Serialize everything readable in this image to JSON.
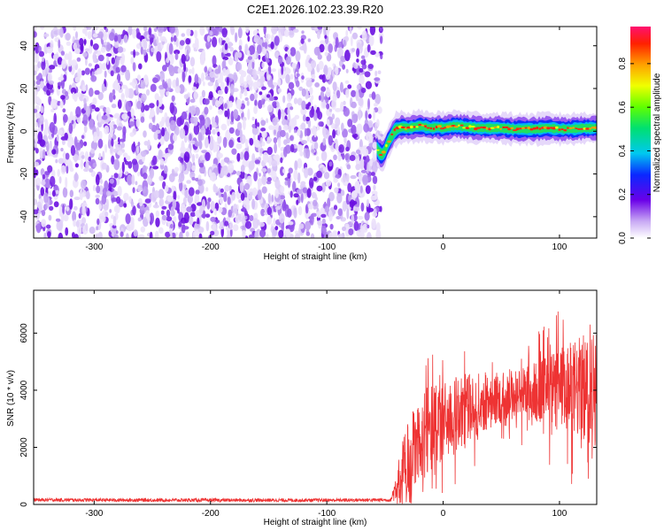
{
  "title": "C2E1.2026.102.23.39.R20",
  "chart_data": [
    {
      "type": "heatmap",
      "name": "spectrogram",
      "xlabel": "Height of straight line (km)",
      "ylabel": "Frequency (Hz)",
      "xlim": [
        -352,
        132
      ],
      "ylim": [
        -50,
        49
      ],
      "x_ticks": [
        -300,
        -200,
        -100,
        0,
        100
      ],
      "y_ticks": [
        -40,
        -20,
        0,
        20,
        40
      ],
      "noise_region_x": [
        -352,
        -57
      ],
      "signal_trace": {
        "x": [
          -57,
          -55,
          -52,
          -50,
          -48,
          -46,
          -44,
          -42,
          -40,
          -35,
          -30,
          -25,
          -20,
          -15,
          -10,
          -5,
          0,
          5,
          10,
          20,
          30,
          40,
          50,
          60,
          70,
          80,
          90,
          100,
          110,
          120,
          132
        ],
        "frequency": [
          -8,
          -10,
          -11,
          -9,
          -6,
          -4,
          -2,
          0,
          1,
          2,
          1.5,
          2,
          2.5,
          2,
          1.5,
          2,
          1.5,
          2,
          2.5,
          2,
          1.5,
          1.5,
          1.5,
          1,
          1,
          1,
          1.5,
          1,
          1,
          1.5,
          1.5
        ]
      },
      "colorbar": {
        "label": "Normalized spectral amplitude",
        "range": [
          0,
          0.97
        ],
        "ticks": [
          0.0,
          0.2,
          0.4,
          0.6,
          0.8
        ],
        "tick_labels": [
          "0.0",
          "0.2",
          "0.4",
          "0.6",
          "0.8"
        ]
      }
    },
    {
      "type": "line",
      "name": "snr",
      "xlabel": "Height of straight line (km)",
      "ylabel": "SNR (10 * v/v)",
      "xlim": [
        -352,
        132
      ],
      "ylim": [
        0,
        7500
      ],
      "x_ticks": [
        -300,
        -200,
        -100,
        0,
        100
      ],
      "y_ticks": [
        0,
        2000,
        4000,
        6000
      ],
      "color": "#ee3333",
      "envelope": {
        "x": [
          -352,
          -300,
          -200,
          -100,
          -45,
          -40,
          -35,
          -30,
          -25,
          -20,
          -10,
          0,
          10,
          20,
          30,
          40,
          50,
          60,
          70,
          80,
          90,
          100,
          110,
          120,
          132
        ],
        "mean": [
          160,
          155,
          150,
          150,
          160,
          700,
          1300,
          1700,
          2000,
          2300,
          2600,
          2900,
          3150,
          3350,
          3500,
          3650,
          3750,
          3850,
          3900,
          3950,
          3950,
          4000,
          4000,
          4050,
          4100
        ],
        "spread": [
          60,
          60,
          60,
          60,
          60,
          600,
          1100,
          1400,
          1500,
          1500,
          1500,
          1400,
          1300,
          1200,
          1100,
          1000,
          900,
          900,
          1000,
          1100,
          1300,
          1500,
          1700,
          1900,
          2100
        ]
      }
    }
  ]
}
